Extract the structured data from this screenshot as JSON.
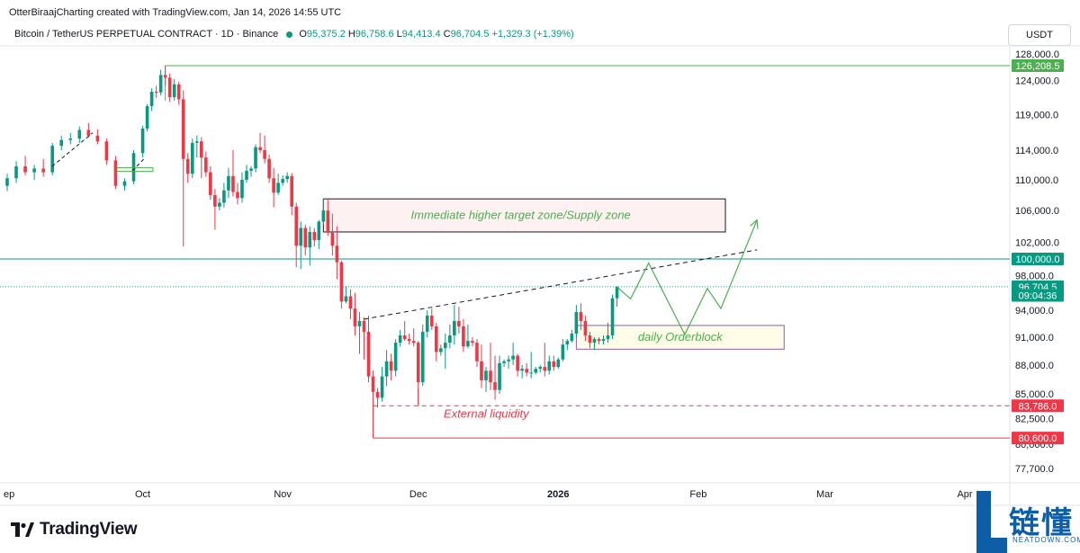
{
  "header": {
    "attribution": "OtterBiraajCharting created with TradingView.com, Jan 14, 2026 14:55 UTC",
    "symbol": "Bitcoin / TetherUS PERPETUAL CONTRACT · 1D · Binance",
    "ohlc": {
      "open_label": "O",
      "open": "95,375.2",
      "high_label": "H",
      "high": "96,758.6",
      "low_label": "L",
      "low": "94,413.4",
      "close_label": "C",
      "close": "96,704.5",
      "change": "+1,329.3 (+1.39%)"
    },
    "quote_currency": "USDT"
  },
  "chart_data": {
    "type": "candlestick",
    "symbol": "BTCUSDT.P",
    "timeframe": "1D",
    "x_axis": {
      "labels": [
        "ep",
        "Oct",
        "Nov",
        "Dec",
        "2026",
        "Feb",
        "Mar",
        "Apr"
      ],
      "dates": [
        "2025-09-01",
        "2025-10-01",
        "2025-11-01",
        "2025-12-01",
        "2026-01-01",
        "2026-02-01",
        "2026-03-01",
        "2026-04-01"
      ]
    },
    "y_axis": {
      "scale": "log",
      "range": [
        76000,
        131000
      ],
      "tick_labels": [
        "128,000.0",
        "124,000.0",
        "119,000.0",
        "114,000.0",
        "110,000.0",
        "106,000.0",
        "102,000.0",
        "98,000.0",
        "94,000.0",
        "91,000.0",
        "88,000.0",
        "85,000.0",
        "82,500.0",
        "80,000.0",
        "77,700.0"
      ],
      "tick_values": [
        128000,
        124000,
        119000,
        114000,
        110000,
        106000,
        102000,
        98000,
        94000,
        91000,
        88000,
        85000,
        82500,
        80000,
        77700
      ]
    },
    "price_badges": [
      {
        "label": "126,208.5",
        "value": 126208.5,
        "color": "#4caf50"
      },
      {
        "label": "100,000.0",
        "value": 100000,
        "color": "#089981"
      },
      {
        "label": "96,704.5",
        "value": 96704.5,
        "color": "#089981"
      },
      {
        "label": "09:04:36",
        "value": 95700,
        "color": "#089981"
      },
      {
        "label": "83,786.0",
        "value": 83786,
        "color": "#f23645"
      },
      {
        "label": "80,600.0",
        "value": 80600,
        "color": "#f23645"
      }
    ],
    "levels": [
      {
        "value": 126208.5,
        "from": "2025-10-06",
        "color": "#4caf50",
        "style": "solid"
      },
      {
        "value": 100000,
        "from": "2025-08-25",
        "color": "#089981",
        "style": "solid"
      },
      {
        "value": 96704.5,
        "from": "2025-08-25",
        "color": "#089981",
        "style": "dotted"
      },
      {
        "value": 83786,
        "from": "2025-11-21",
        "color": "#f23645",
        "style": "dashed"
      },
      {
        "value": 80600,
        "from": "2025-11-21",
        "color": "#f23645",
        "style": "solid"
      }
    ],
    "zones": [
      {
        "label": "Immediate higher target zone/Supply zone",
        "from": "2025-11-10",
        "to": "2026-02-07",
        "top": 107500,
        "bottom": 103300,
        "color": "#4caf50",
        "fill": "#fdf1f1",
        "border": "#131722"
      },
      {
        "label": "daily Orderblock",
        "from": "2026-01-05",
        "to": "2026-02-20",
        "top": 92300,
        "bottom": 89700,
        "color": "#4caf50",
        "fill": "#fffde7",
        "border": "#8e5ab0"
      }
    ],
    "annotations": [
      {
        "label": "External liquidity",
        "color": "#f23645"
      }
    ],
    "trendline": {
      "from": [
        "2025-11-19",
        93000
      ],
      "to": [
        "2026-02-14",
        101100
      ],
      "style": "dashed",
      "color": "#131722"
    },
    "projection_path": [
      [
        "2026-01-14",
        96700
      ],
      [
        "2026-01-17",
        95300
      ],
      [
        "2026-01-21",
        99500
      ],
      [
        "2026-01-29",
        91300
      ],
      [
        "2026-02-03",
        96500
      ],
      [
        "2026-02-06",
        94200
      ],
      [
        "2026-02-14",
        104800
      ]
    ],
    "candles": [
      [
        "2025-09-01",
        109200,
        110800,
        108500,
        110200
      ],
      [
        "2025-09-03",
        110200,
        112500,
        109600,
        111800
      ],
      [
        "2025-09-05",
        111800,
        113200,
        110600,
        111000
      ],
      [
        "2025-09-07",
        111000,
        112000,
        110000,
        111500
      ],
      [
        "2025-09-09",
        111500,
        112800,
        110400,
        111000
      ],
      [
        "2025-09-11",
        111000,
        115000,
        110600,
        114600
      ],
      [
        "2025-09-13",
        114600,
        116000,
        114000,
        115400
      ],
      [
        "2025-09-15",
        115400,
        116400,
        114800,
        115600
      ],
      [
        "2025-09-17",
        115600,
        117300,
        115000,
        116800
      ],
      [
        "2025-09-19",
        116800,
        117800,
        115800,
        116000
      ],
      [
        "2025-09-21",
        116000,
        116900,
        114800,
        115200
      ],
      [
        "2025-09-23",
        115200,
        115600,
        112000,
        112600
      ],
      [
        "2025-09-25",
        112600,
        113200,
        108800,
        109200
      ],
      [
        "2025-09-27",
        109200,
        110200,
        108600,
        109800
      ],
      [
        "2025-09-29",
        109800,
        114000,
        109400,
        113600
      ],
      [
        "2025-10-01",
        113600,
        117400,
        113000,
        117000
      ],
      [
        "2025-10-02",
        117000,
        120500,
        116600,
        120200
      ],
      [
        "2025-10-03",
        120200,
        122800,
        119500,
        122300
      ],
      [
        "2025-10-04",
        122300,
        123200,
        121400,
        122200
      ],
      [
        "2025-10-05",
        122200,
        125600,
        121800,
        124800
      ],
      [
        "2025-10-06",
        124800,
        126208,
        123200,
        124400
      ],
      [
        "2025-10-07",
        124400,
        125000,
        120800,
        121500
      ],
      [
        "2025-10-08",
        121500,
        124200,
        121000,
        123400
      ],
      [
        "2025-10-09",
        123400,
        123800,
        120400,
        121200
      ],
      [
        "2025-10-10",
        121200,
        122500,
        101500,
        112800
      ],
      [
        "2025-10-11",
        112800,
        113600,
        109600,
        110800
      ],
      [
        "2025-10-12",
        110800,
        115600,
        110200,
        115000
      ],
      [
        "2025-10-13",
        115000,
        116000,
        113000,
        115200
      ],
      [
        "2025-10-14",
        115200,
        115800,
        110200,
        113000
      ],
      [
        "2025-10-15",
        113000,
        113800,
        110400,
        111000
      ],
      [
        "2025-10-16",
        111000,
        111800,
        107400,
        108000
      ],
      [
        "2025-10-17",
        108000,
        108800,
        103600,
        106500
      ],
      [
        "2025-10-18",
        106500,
        107600,
        106000,
        107000
      ],
      [
        "2025-10-19",
        107000,
        109600,
        106400,
        108600
      ],
      [
        "2025-10-20",
        108600,
        111600,
        107600,
        110500
      ],
      [
        "2025-10-21",
        110500,
        114000,
        107800,
        108400
      ],
      [
        "2025-10-22",
        108400,
        109600,
        106800,
        107600
      ],
      [
        "2025-10-23",
        107600,
        111000,
        107000,
        110000
      ],
      [
        "2025-10-24",
        110000,
        112000,
        109600,
        111200
      ],
      [
        "2025-10-25",
        111200,
        111800,
        110400,
        111500
      ],
      [
        "2025-10-26",
        111500,
        114800,
        111000,
        114400
      ],
      [
        "2025-10-27",
        114400,
        116400,
        113600,
        114000
      ],
      [
        "2025-10-28",
        114000,
        116000,
        112200,
        112800
      ],
      [
        "2025-10-29",
        112800,
        113400,
        109600,
        110200
      ],
      [
        "2025-10-30",
        110200,
        111600,
        106400,
        108300
      ],
      [
        "2025-10-31",
        108300,
        110800,
        108000,
        109600
      ],
      [
        "2025-11-01",
        109600,
        110600,
        109200,
        110100
      ],
      [
        "2025-11-02",
        110100,
        111000,
        109600,
        110500
      ],
      [
        "2025-11-03",
        110500,
        110900,
        105400,
        106500
      ],
      [
        "2025-11-04",
        106500,
        107000,
        99000,
        101600
      ],
      [
        "2025-11-05",
        101600,
        104600,
        98800,
        103800
      ],
      [
        "2025-11-06",
        103800,
        104200,
        100400,
        101400
      ],
      [
        "2025-11-07",
        101400,
        104000,
        99200,
        103300
      ],
      [
        "2025-11-08",
        103300,
        103800,
        101500,
        102300
      ],
      [
        "2025-11-09",
        102300,
        104800,
        101200,
        104600
      ],
      [
        "2025-11-10",
        104600,
        107500,
        104200,
        106000
      ],
      [
        "2025-11-11",
        106000,
        107400,
        102800,
        103200
      ],
      [
        "2025-11-12",
        103200,
        105600,
        100400,
        101600
      ],
      [
        "2025-11-13",
        101600,
        104000,
        97600,
        99600
      ],
      [
        "2025-11-14",
        99600,
        99800,
        94200,
        95000
      ],
      [
        "2025-11-15",
        95000,
        96800,
        94800,
        95600
      ],
      [
        "2025-11-16",
        95600,
        96400,
        93000,
        94200
      ],
      [
        "2025-11-17",
        94200,
        96000,
        91200,
        92200
      ],
      [
        "2025-11-18",
        92200,
        93800,
        89200,
        92800
      ],
      [
        "2025-11-19",
        92800,
        93200,
        88600,
        91600
      ],
      [
        "2025-11-20",
        91600,
        93400,
        86200,
        86800
      ],
      [
        "2025-11-21",
        86800,
        87400,
        80600,
        85200
      ],
      [
        "2025-11-22",
        85200,
        85600,
        83600,
        84600
      ],
      [
        "2025-11-23",
        84600,
        87800,
        84200,
        86800
      ],
      [
        "2025-11-24",
        86800,
        89600,
        85800,
        88400
      ],
      [
        "2025-11-25",
        88400,
        89200,
        86400,
        87400
      ],
      [
        "2025-11-26",
        87400,
        90800,
        86800,
        90400
      ],
      [
        "2025-11-27",
        90400,
        91800,
        90000,
        91200
      ],
      [
        "2025-11-28",
        91200,
        92800,
        90600,
        90800
      ],
      [
        "2025-11-29",
        90800,
        91400,
        90200,
        90600
      ],
      [
        "2025-11-30",
        90600,
        92000,
        90000,
        90400
      ],
      [
        "2025-12-01",
        90400,
        90600,
        83800,
        86200
      ],
      [
        "2025-12-02",
        86200,
        92400,
        85800,
        91600
      ],
      [
        "2025-12-03",
        91600,
        94000,
        91000,
        93400
      ],
      [
        "2025-12-04",
        93400,
        94200,
        91800,
        92200
      ],
      [
        "2025-12-05",
        92200,
        92600,
        88400,
        89400
      ],
      [
        "2025-12-06",
        89400,
        90200,
        89000,
        89800
      ],
      [
        "2025-12-07",
        89800,
        91400,
        87600,
        90400
      ],
      [
        "2025-12-08",
        90400,
        92400,
        89800,
        91200
      ],
      [
        "2025-12-09",
        91200,
        94600,
        90200,
        92800
      ],
      [
        "2025-12-10",
        92800,
        94400,
        91400,
        92200
      ],
      [
        "2025-12-11",
        92200,
        93000,
        89400,
        90000
      ],
      [
        "2025-12-12",
        90000,
        92400,
        89800,
        90600
      ],
      [
        "2025-12-13",
        90600,
        91000,
        90000,
        90400
      ],
      [
        "2025-12-14",
        90400,
        90800,
        87800,
        88400
      ],
      [
        "2025-12-15",
        88400,
        90200,
        85600,
        86400
      ],
      [
        "2025-12-16",
        86400,
        87800,
        85200,
        87400
      ],
      [
        "2025-12-17",
        87400,
        90400,
        85400,
        86200
      ],
      [
        "2025-12-18",
        86200,
        89000,
        84400,
        85400
      ],
      [
        "2025-12-19",
        85400,
        89000,
        85000,
        88200
      ],
      [
        "2025-12-20",
        88200,
        88600,
        87800,
        88400
      ],
      [
        "2025-12-21",
        88400,
        89000,
        87600,
        88600
      ],
      [
        "2025-12-22",
        88600,
        90400,
        88000,
        89000
      ],
      [
        "2025-12-23",
        89000,
        89200,
        86800,
        87400
      ],
      [
        "2025-12-24",
        87400,
        88000,
        86600,
        87600
      ],
      [
        "2025-12-25",
        87600,
        88200,
        86800,
        87200
      ],
      [
        "2025-12-26",
        87200,
        89400,
        86600,
        87200
      ],
      [
        "2025-12-27",
        87200,
        87800,
        87000,
        87600
      ],
      [
        "2025-12-28",
        87600,
        88000,
        87200,
        87800
      ],
      [
        "2025-12-29",
        87800,
        90400,
        86800,
        87400
      ],
      [
        "2025-12-30",
        87400,
        89000,
        87000,
        88400
      ],
      [
        "2025-12-31",
        88400,
        89000,
        87400,
        87800
      ],
      [
        "2026-01-01",
        87800,
        88800,
        87600,
        88600
      ],
      [
        "2026-01-02",
        88600,
        90800,
        88400,
        90200
      ],
      [
        "2026-01-03",
        90200,
        90800,
        89600,
        90600
      ],
      [
        "2026-01-04",
        90600,
        91800,
        90400,
        91400
      ],
      [
        "2026-01-05",
        91400,
        94600,
        91000,
        93800
      ],
      [
        "2026-01-06",
        93800,
        94800,
        91800,
        92800
      ],
      [
        "2026-01-07",
        92800,
        93400,
        90600,
        91200
      ],
      [
        "2026-01-08",
        91200,
        91600,
        89800,
        90400
      ],
      [
        "2026-01-09",
        90400,
        91000,
        89600,
        90800
      ],
      [
        "2026-01-10",
        90800,
        91000,
        90200,
        90600
      ],
      [
        "2026-01-11",
        90600,
        91200,
        90200,
        90800
      ],
      [
        "2026-01-12",
        90800,
        92600,
        90400,
        91200
      ],
      [
        "2026-01-13",
        91200,
        95800,
        90800,
        95375
      ],
      [
        "2026-01-14",
        95375,
        96758,
        94413,
        96704
      ]
    ]
  },
  "footer": {
    "brand": "TradingView"
  },
  "watermark": {
    "zh": "链懂",
    "en": "NEATDOWN.COM"
  }
}
